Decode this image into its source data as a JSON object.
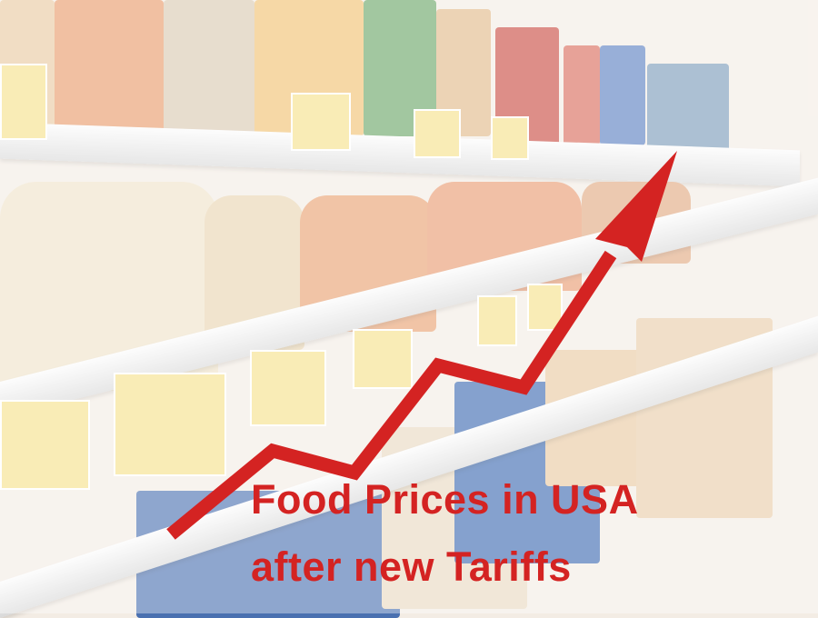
{
  "caption": {
    "line1": "Food Prices in USA",
    "line2": "after new Tariffs"
  },
  "colors": {
    "caption": "#d42322",
    "arrow": "#d42322",
    "price_tag": "#f6e08a"
  },
  "graphic": {
    "arrow_direction": "upward-trend",
    "background": "grocery-store-shelves"
  }
}
